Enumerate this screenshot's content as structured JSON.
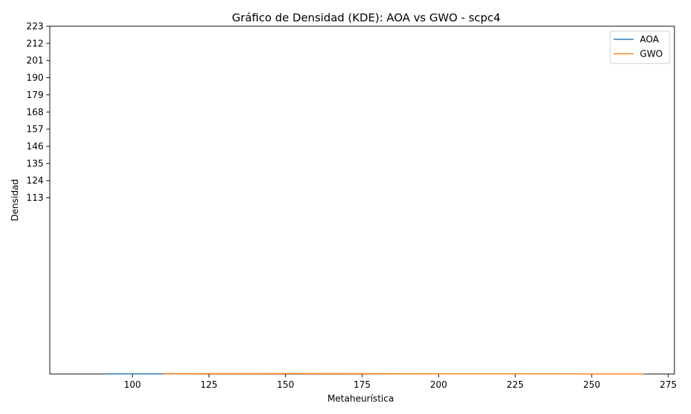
{
  "chart_data": {
    "type": "line",
    "title": "Gráfico de Densidad (KDE): AOA vs GWO - scpc4",
    "xlabel": "Metaheurística",
    "ylabel": "Densidad",
    "xlim": [
      73,
      277
    ],
    "ylim": [
      0,
      223
    ],
    "xticks": [
      100,
      125,
      150,
      175,
      200,
      225,
      250,
      275
    ],
    "yticks": [
      113,
      124,
      135,
      146,
      157,
      168,
      179,
      190,
      201,
      212,
      223
    ],
    "legend_position": "top-right",
    "grid": false,
    "series": [
      {
        "name": "AOA",
        "color": "#1f77b4",
        "x": [
          91,
          95,
          100,
          105,
          110,
          111
        ],
        "y": [
          0.05,
          0.06,
          0.07,
          0.06,
          0.05,
          0.05
        ]
      },
      {
        "name": "GWO",
        "color": "#ff7f0e",
        "x": [
          110,
          125,
          150,
          175,
          182,
          200,
          225,
          250,
          267
        ],
        "y": [
          0.15,
          0.2,
          0.25,
          0.2,
          0.15,
          0.12,
          0.1,
          0.08,
          0.05
        ]
      }
    ]
  }
}
